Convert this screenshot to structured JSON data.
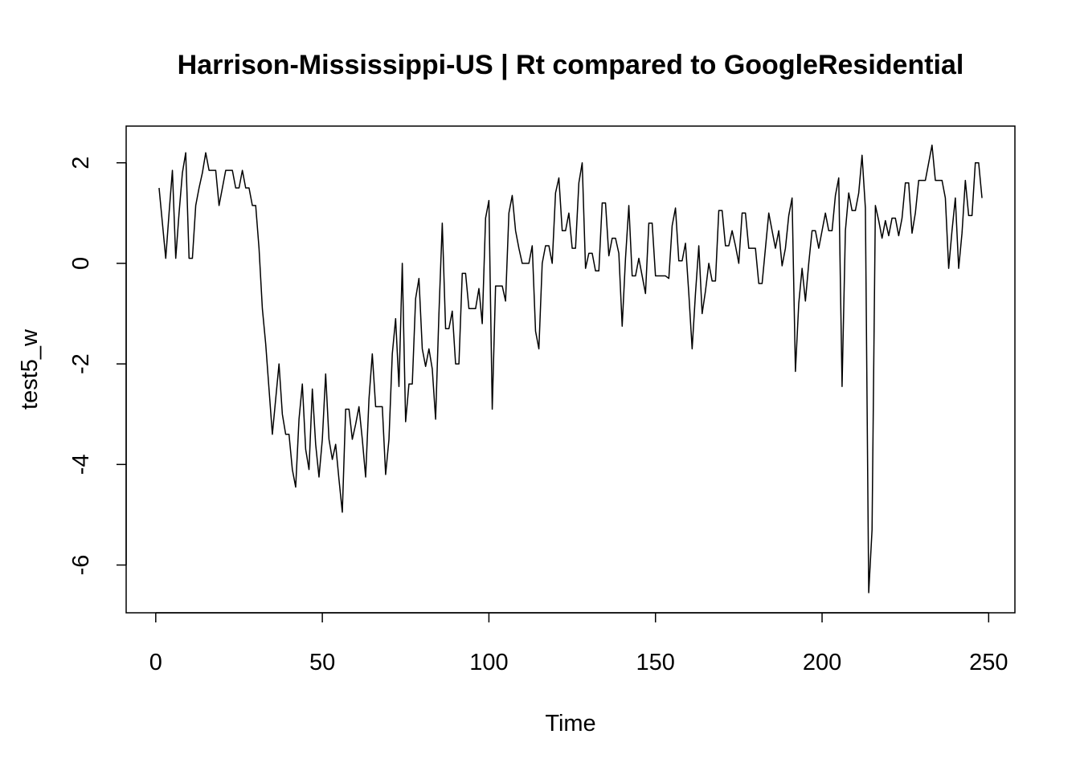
{
  "chart_data": {
    "type": "line",
    "title": "Harrison-Mississippi-US | Rt compared to GoogleResidential",
    "x_label": "Time",
    "y_label": "test5_w",
    "color": "#000000",
    "xlim": [
      -8.88,
      257.88
    ],
    "ylim": [
      -6.95,
      2.73
    ],
    "xticks": [
      0,
      50,
      100,
      150,
      200,
      250
    ],
    "yticks": [
      -6,
      -4,
      -2,
      0,
      2
    ],
    "x": [
      1,
      2,
      3,
      4,
      5,
      6,
      7,
      8,
      9,
      10,
      11,
      12,
      13,
      14,
      15,
      16,
      17,
      18,
      19,
      20,
      21,
      22,
      23,
      24,
      25,
      26,
      27,
      28,
      29,
      30,
      31,
      32,
      33,
      34,
      35,
      36,
      37,
      38,
      39,
      40,
      41,
      42,
      43,
      44,
      45,
      46,
      47,
      48,
      49,
      50,
      51,
      52,
      53,
      54,
      55,
      56,
      57,
      58,
      59,
      60,
      61,
      62,
      63,
      64,
      65,
      66,
      67,
      68,
      69,
      70,
      71,
      72,
      73,
      74,
      75,
      76,
      77,
      78,
      79,
      80,
      81,
      82,
      83,
      84,
      85,
      86,
      87,
      88,
      89,
      90,
      91,
      92,
      93,
      94,
      95,
      96,
      97,
      98,
      99,
      100,
      101,
      102,
      103,
      104,
      105,
      106,
      107,
      108,
      109,
      110,
      111,
      112,
      113,
      114,
      115,
      116,
      117,
      118,
      119,
      120,
      121,
      122,
      123,
      124,
      125,
      126,
      127,
      128,
      129,
      130,
      131,
      132,
      133,
      134,
      135,
      136,
      137,
      138,
      139,
      140,
      141,
      142,
      143,
      144,
      145,
      146,
      147,
      148,
      149,
      150,
      151,
      152,
      153,
      154,
      155,
      156,
      157,
      158,
      159,
      160,
      161,
      162,
      163,
      164,
      165,
      166,
      167,
      168,
      169,
      170,
      171,
      172,
      173,
      174,
      175,
      176,
      177,
      178,
      179,
      180,
      181,
      182,
      183,
      184,
      185,
      186,
      187,
      188,
      189,
      190,
      191,
      192,
      193,
      194,
      195,
      196,
      197,
      198,
      199,
      200,
      201,
      202,
      203,
      204,
      205,
      206,
      207,
      208,
      209,
      210,
      211,
      212,
      213,
      214,
      215,
      216,
      217,
      218,
      219,
      220,
      221,
      222,
      223,
      224,
      225,
      226,
      227,
      228,
      229,
      230,
      231,
      232,
      233,
      234,
      235,
      236,
      237,
      238,
      239,
      240,
      241,
      242,
      243,
      244,
      245,
      246,
      247,
      248
    ],
    "values": [
      1.5,
      0.8,
      0.1,
      1.0,
      1.85,
      0.1,
      1.0,
      1.8,
      2.2,
      0.1,
      0.1,
      1.15,
      1.5,
      1.8,
      2.2,
      1.85,
      1.85,
      1.85,
      1.15,
      1.5,
      1.85,
      1.85,
      1.85,
      1.5,
      1.5,
      1.85,
      1.5,
      1.5,
      1.15,
      1.15,
      0.3,
      -0.9,
      -1.6,
      -2.5,
      -3.4,
      -2.7,
      -2.0,
      -3.0,
      -3.4,
      -3.4,
      -4.1,
      -4.45,
      -3.1,
      -2.4,
      -3.7,
      -4.1,
      -2.5,
      -3.6,
      -4.25,
      -3.5,
      -2.2,
      -3.5,
      -3.9,
      -3.6,
      -4.3,
      -4.95,
      -2.9,
      -2.9,
      -3.5,
      -3.2,
      -2.85,
      -3.5,
      -4.25,
      -2.7,
      -1.8,
      -2.85,
      -2.85,
      -2.85,
      -4.2,
      -3.5,
      -1.8,
      -1.1,
      -2.45,
      0.0,
      -3.15,
      -2.4,
      -2.4,
      -0.7,
      -0.3,
      -1.7,
      -2.05,
      -1.7,
      -2.1,
      -3.1,
      -1.0,
      0.8,
      -1.3,
      -1.3,
      -0.95,
      -2.0,
      -2.0,
      -0.2,
      -0.2,
      -0.9,
      -0.9,
      -0.9,
      -0.5,
      -1.2,
      0.9,
      1.25,
      -2.9,
      -0.45,
      -0.45,
      -0.45,
      -0.75,
      1.0,
      1.35,
      0.65,
      0.3,
      0.0,
      0.0,
      0.0,
      0.35,
      -1.35,
      -1.7,
      0.0,
      0.35,
      0.35,
      0.0,
      1.4,
      1.7,
      0.65,
      0.65,
      1.0,
      0.3,
      0.3,
      1.6,
      2.0,
      -0.1,
      0.2,
      0.2,
      -0.15,
      -0.15,
      1.2,
      1.2,
      0.15,
      0.5,
      0.5,
      0.2,
      -1.25,
      0.1,
      1.15,
      -0.25,
      -0.25,
      0.1,
      -0.25,
      -0.6,
      0.8,
      0.8,
      -0.25,
      -0.25,
      -0.25,
      -0.25,
      -0.3,
      0.75,
      1.1,
      0.05,
      0.05,
      0.4,
      -0.6,
      -1.7,
      -0.6,
      0.35,
      -1.0,
      -0.55,
      0.0,
      -0.35,
      -0.35,
      1.05,
      1.05,
      0.35,
      0.35,
      0.65,
      0.35,
      0.0,
      1.0,
      1.0,
      0.3,
      0.3,
      0.3,
      -0.4,
      -0.4,
      0.3,
      1.0,
      0.65,
      0.3,
      0.65,
      -0.05,
      0.3,
      0.95,
      1.3,
      -2.15,
      -0.8,
      -0.1,
      -0.75,
      0.0,
      0.65,
      0.65,
      0.3,
      0.65,
      1.0,
      0.65,
      0.65,
      1.35,
      1.7,
      -2.45,
      0.65,
      1.4,
      1.05,
      1.05,
      1.4,
      2.15,
      1.1,
      -6.55,
      -5.3,
      1.15,
      0.85,
      0.5,
      0.85,
      0.55,
      0.9,
      0.9,
      0.55,
      0.9,
      1.6,
      1.6,
      0.6,
      1.0,
      1.65,
      1.65,
      1.65,
      2.0,
      2.35,
      1.65,
      1.65,
      1.65,
      1.3,
      -0.1,
      0.65,
      1.3,
      -0.1,
      0.6,
      1.65,
      0.95,
      0.95,
      2.0,
      2.0,
      1.3
    ]
  }
}
